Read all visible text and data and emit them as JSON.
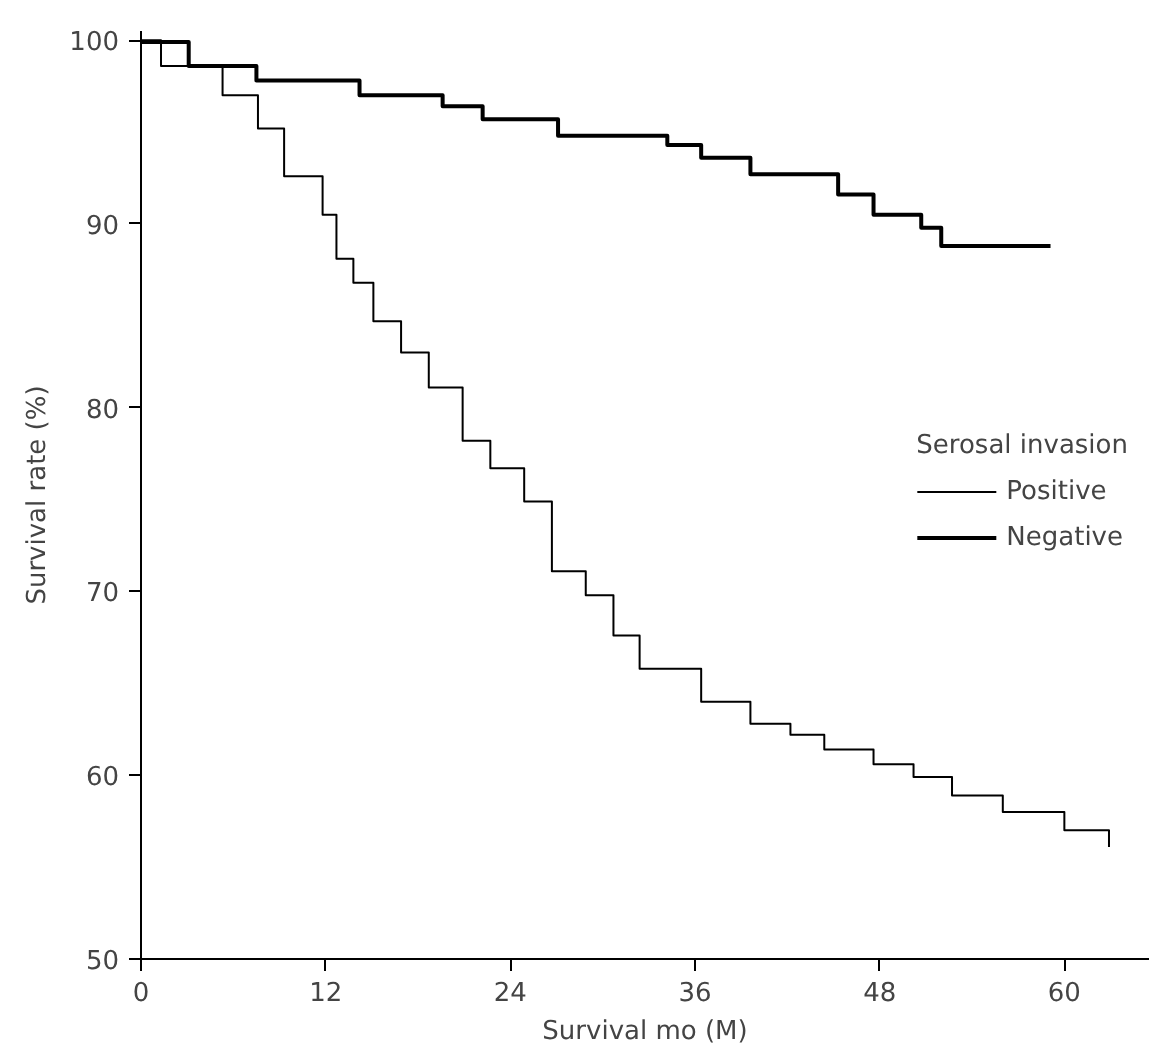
{
  "chart_data": {
    "type": "step",
    "xlabel": "Survival mo (M)",
    "ylabel": "Survival rate (%)",
    "legend_title": "Serosal invasion",
    "legend": "right",
    "grid": false,
    "xlim": [
      0,
      65.5
    ],
    "xticks": [
      0,
      12,
      24,
      36,
      48,
      60
    ],
    "ylim": [
      50,
      100.5
    ],
    "yticks": [
      50,
      60,
      70,
      80,
      90,
      100
    ],
    "series": [
      {
        "name": "Positive",
        "color": "#000000",
        "x": [
          0,
          1.3,
          5.3,
          7.6,
          9.3,
          11.8,
          12.7,
          13.8,
          15.1,
          16.9,
          18.7,
          20.9,
          22.7,
          24.9,
          26.7,
          28.9,
          30.7,
          32.4,
          36.4,
          39.6,
          42.2,
          44.4,
          47.6,
          50.2,
          52.7,
          56,
          60,
          62.9
        ],
        "values": [
          100,
          98.6,
          97.0,
          95.2,
          92.6,
          90.5,
          88.1,
          86.8,
          84.7,
          83,
          81.1,
          78.2,
          76.7,
          74.9,
          71.1,
          69.8,
          67.6,
          65.8,
          64.0,
          62.8,
          62.2,
          61.4,
          60.6,
          59.9,
          58.9,
          58.0,
          57.0,
          56.1
        ]
      },
      {
        "name": "Negative",
        "color": "#000000",
        "x": [
          0,
          3.1,
          7.5,
          14.2,
          19.6,
          22.2,
          27.1,
          34.2,
          36.4,
          39.6,
          45.3,
          47.6,
          50.7,
          52,
          59.1
        ],
        "values": [
          99.9,
          98.6,
          97.8,
          97.0,
          96.4,
          95.7,
          94.8,
          94.3,
          93.6,
          92.7,
          91.6,
          90.5,
          89.8,
          88.8,
          88.8
        ]
      }
    ]
  }
}
